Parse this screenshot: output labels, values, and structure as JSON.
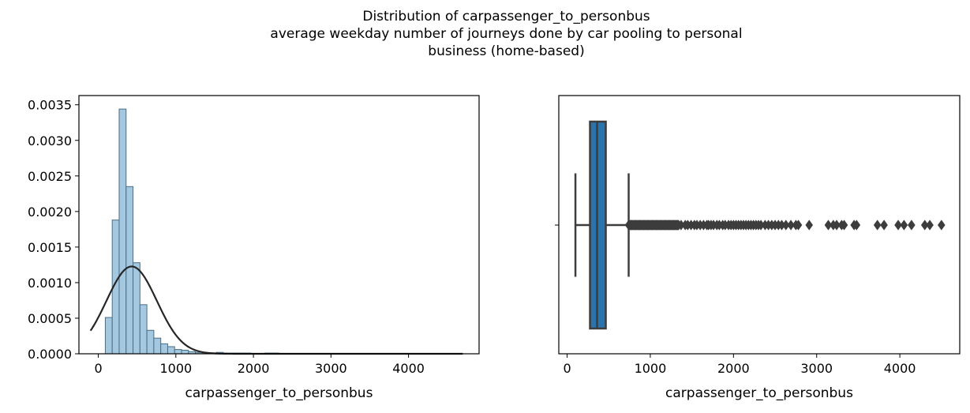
{
  "figure": {
    "title_lines": [
      "Distribution of carpassenger_to_personbus",
      "average weekday number of journeys done by car pooling to personal",
      "business (home-based)"
    ]
  },
  "colors": {
    "hist_fill": "#a5c8e1",
    "hist_edge": "#4a6d86",
    "kde": "#262626",
    "box_fill": "#2b73ad",
    "box_line": "#3d3d3d",
    "axis": "#000000"
  },
  "chart_data": [
    {
      "type": "histogram",
      "xlabel": "carpassenger_to_personbus",
      "ylabel": "",
      "xlim": [
        -250,
        4910
      ],
      "ylim": [
        0,
        0.00363
      ],
      "xticks": [
        0,
        1000,
        2000,
        3000,
        4000
      ],
      "xtick_labels": [
        "0",
        "1000",
        "2000",
        "3000",
        "4000"
      ],
      "yticks": [
        0,
        0.0005,
        0.001,
        0.0015,
        0.002,
        0.0025,
        0.003,
        0.0035
      ],
      "ytick_labels": [
        "0.0000",
        "0.0005",
        "0.0010",
        "0.0015",
        "0.0020",
        "0.0025",
        "0.0030",
        "0.0035"
      ],
      "bin_start": 90,
      "bin_width": 89.4,
      "bin_density": [
        0.00051,
        0.00188,
        0.00344,
        0.00235,
        0.00128,
        0.00069,
        0.00033,
        0.00022,
        0.00014,
        0.0001,
        6e-05,
        5e-05,
        3e-05,
        2e-05,
        1.5e-05,
        1e-05,
        2e-05,
        1e-05,
        1e-05,
        1e-05,
        1e-05,
        0.0,
        5e-06,
        1e-05,
        1e-05,
        5e-06,
        3e-06,
        3e-06,
        2e-06,
        2e-06,
        2e-06,
        2e-06,
        0.0,
        1e-06,
        1e-06,
        2e-06,
        1e-06,
        1e-06,
        0.0,
        1e-06,
        1e-06,
        1e-06,
        1e-06,
        0.0,
        1e-06,
        1e-06,
        1e-06,
        1e-06,
        1e-06,
        1e-06
      ],
      "kde": {
        "type": "normal_fit",
        "mean": 430,
        "std": 325,
        "x_range": [
          -100,
          4700
        ]
      }
    },
    {
      "type": "boxplot",
      "xlabel": "carpassenger_to_personbus",
      "xlim": [
        -100,
        4720
      ],
      "xticks": [
        0,
        1000,
        2000,
        3000,
        4000
      ],
      "xtick_labels": [
        "0",
        "1000",
        "2000",
        "3000",
        "4000"
      ],
      "min": 100,
      "q1": 275,
      "median": 360,
      "q3": 465,
      "whisker_high": 740,
      "outliers_dense": [
        740,
        1340
      ],
      "outliers": [
        1370,
        1420,
        1450,
        1490,
        1530,
        1560,
        1600,
        1640,
        1680,
        1700,
        1730,
        1760,
        1800,
        1830,
        1870,
        1900,
        1940,
        1970,
        2000,
        2030,
        2060,
        2090,
        2120,
        2150,
        2180,
        2210,
        2240,
        2270,
        2300,
        2330,
        2380,
        2420,
        2460,
        2500,
        2540,
        2580,
        2630,
        2690,
        2750,
        2780,
        2910,
        3140,
        3200,
        3240,
        3300,
        3330,
        3450,
        3480,
        3730,
        3810,
        3980,
        4050,
        4140,
        4300,
        4360,
        4500
      ]
    }
  ]
}
